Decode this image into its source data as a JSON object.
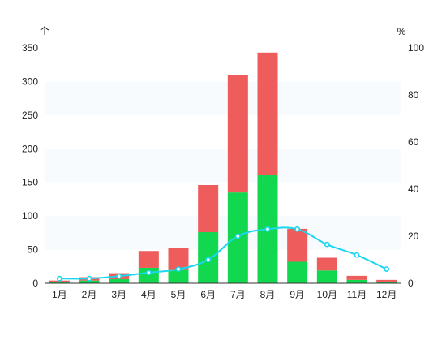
{
  "chart_data": {
    "type": "bar",
    "stacked": true,
    "categories": [
      "1月",
      "2月",
      "3月",
      "4月",
      "5月",
      "6月",
      "7月",
      "8月",
      "9月",
      "10月",
      "11月",
      "12月"
    ],
    "series": [
      {
        "values": [
          2,
          4,
          6,
          23,
          21,
          76,
          135,
          161,
          32,
          19,
          5,
          2
        ],
        "color": "#11d84f"
      },
      {
        "values": [
          2,
          5,
          9,
          25,
          32,
          70,
          175,
          182,
          49,
          19,
          6,
          3
        ],
        "color": "#ee5c5c"
      },
      {
        "type": "line",
        "axis": "right",
        "values": [
          2,
          2,
          3,
          4.5,
          6,
          10,
          20,
          23,
          23,
          16.5,
          12,
          6
        ],
        "color": "#1ad6ee"
      }
    ],
    "left_axis": {
      "unit": "个",
      "ylim": [
        0,
        350
      ],
      "ticks": [
        0,
        50,
        100,
        150,
        200,
        250,
        300,
        350
      ]
    },
    "right_axis": {
      "unit": "%",
      "ylim": [
        0,
        100
      ],
      "ticks": [
        0,
        20,
        40,
        60,
        80,
        100
      ]
    },
    "grid": "alternating horizontal bands",
    "legend": "none"
  }
}
